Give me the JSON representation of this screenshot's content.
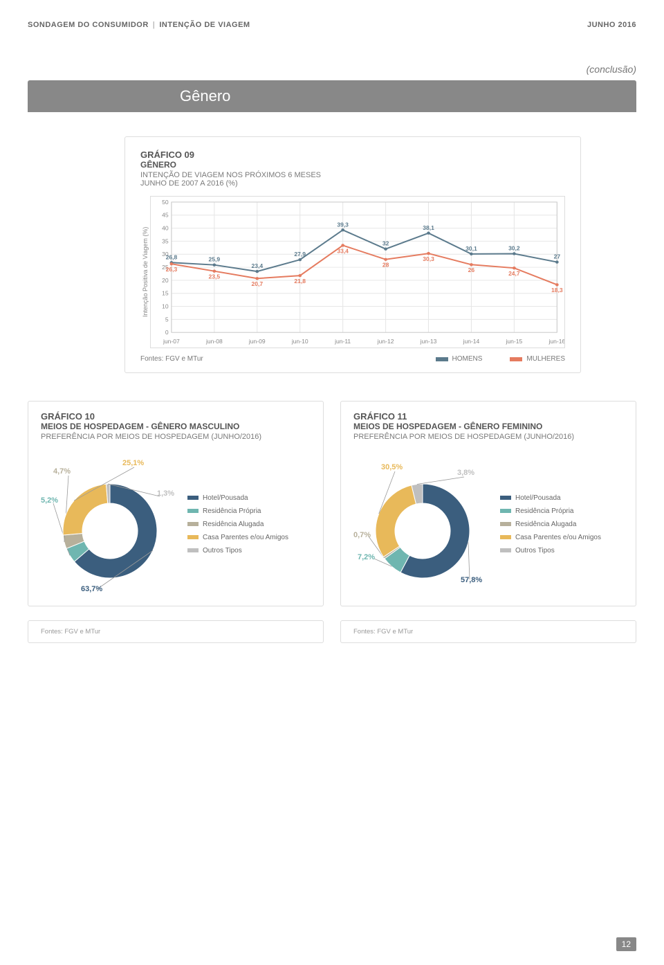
{
  "header": {
    "left1": "SONDAGEM DO CONSUMIDOR",
    "left2": "INTENÇÃO DE VIAGEM",
    "right": "JUNHO 2016"
  },
  "conclusao": "(conclusão)",
  "band_title": "Gênero",
  "chart09": {
    "num": "GRÁFICO 09",
    "sub": "GÊNERO",
    "desc1": "INTENÇÃO DE VIAGEM NOS PRÓXIMOS 6 MESES",
    "desc2": "JUNHO DE 2007 A 2016 (%)",
    "y_label": "Intenção Positiva de Viagem (%)",
    "x_labels": [
      "jun-07",
      "jun-08",
      "jun-09",
      "jun-10",
      "jun-11",
      "jun-12",
      "jun-13",
      "jun-14",
      "jun-15",
      "jun-16"
    ],
    "y_ticks": [
      0,
      5,
      10,
      15,
      20,
      25,
      30,
      35,
      40,
      45,
      50
    ],
    "ylim": [
      0,
      50
    ],
    "series": {
      "homens": {
        "label": "HOMENS",
        "color": "#5b7a8c",
        "values": [
          26.8,
          25.9,
          23.4,
          27.9,
          39.3,
          32.0,
          38.1,
          30.1,
          30.2,
          27.0
        ]
      },
      "mulheres": {
        "label": "MULHERES",
        "color": "#e57b5f",
        "values": [
          26.3,
          23.5,
          20.7,
          21.8,
          33.4,
          28.0,
          30.3,
          26.0,
          24.7,
          18.3
        ]
      }
    },
    "source": "Fontes: FGV e MTur",
    "grid_color": "#e6e6e6",
    "border_color": "#cccccc",
    "label_fontsize": 9
  },
  "chart10": {
    "num": "GRÁFICO 10",
    "sub": "MEIOS DE HOSPEDAGEM - GÊNERO MASCULINO",
    "desc": "PREFERÊNCIA POR MEIOS DE HOSPEDAGEM (JUNHO/2016)",
    "type": "donut",
    "slices": [
      {
        "label": "Hotel/Pousada",
        "value": 63.7,
        "color": "#3b5e7e",
        "text": "63,7%"
      },
      {
        "label": "Residência Própria",
        "value": 5.2,
        "color": "#6fb6b0",
        "text": "5,2%"
      },
      {
        "label": "Residência Alugada",
        "value": 4.7,
        "color": "#b7b09b",
        "text": "4,7%"
      },
      {
        "label": "Casa Parentes e/ou Amigos",
        "value": 25.1,
        "color": "#e8b95a",
        "text": "25,1%"
      },
      {
        "label": "Outros Tipos",
        "value": 1.3,
        "color": "#bfbfbf",
        "text": "1,3%"
      }
    ],
    "source": "Fontes: FGV e MTur"
  },
  "chart11": {
    "num": "GRÁFICO 11",
    "sub": "MEIOS DE HOSPEDAGEM - GÊNERO FEMININO",
    "desc": "PREFERÊNCIA POR MEIOS DE HOSPEDAGEM (JUNHO/2016)",
    "type": "donut",
    "slices": [
      {
        "label": "Hotel/Pousada",
        "value": 57.8,
        "color": "#3b5e7e",
        "text": "57,8%"
      },
      {
        "label": "Residência Própria",
        "value": 7.2,
        "color": "#6fb6b0",
        "text": "7,2%"
      },
      {
        "label": "Residência Alugada",
        "value": 0.7,
        "color": "#b7b09b",
        "text": "0,7%"
      },
      {
        "label": "Casa Parentes e/ou Amigos",
        "value": 30.5,
        "color": "#e8b95a",
        "text": "30,5%"
      },
      {
        "label": "Outros Tipos",
        "value": 3.8,
        "color": "#bfbfbf",
        "text": "3,8%"
      }
    ],
    "source": "Fontes: FGV e MTur"
  },
  "legend_labels": {
    "hotel": "Hotel/Pousada",
    "res_propria": "Residência Própria",
    "res_alugada": "Residência Alugada",
    "casa_parentes": "Casa Parentes e/ou Amigos",
    "outros": "Outros Tipos"
  },
  "colors": {
    "hotel": "#3b5e7e",
    "res_propria": "#6fb6b0",
    "res_alugada": "#b7b09b",
    "casa_parentes": "#e8b95a",
    "outros": "#bfbfbf"
  },
  "page_number": "12"
}
